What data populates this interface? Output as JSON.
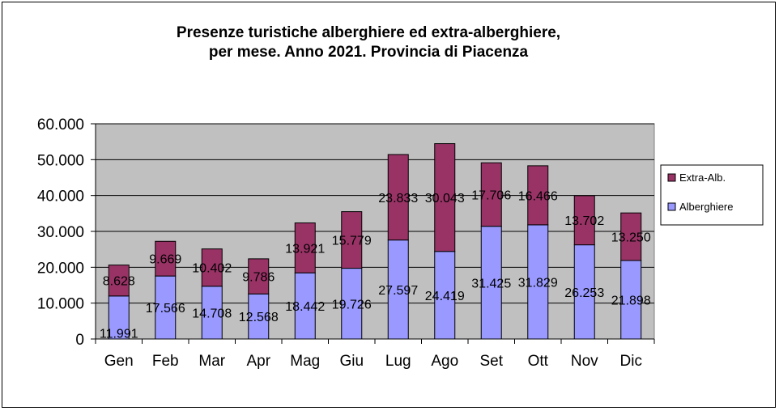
{
  "chart_data": {
    "type": "bar",
    "stacked": true,
    "title": "Presenze turistiche alberghiere ed extra-alberghiere,",
    "subtitle": "per mese. Anno 2021. Provincia di Piacenza",
    "categories": [
      "Gen",
      "Feb",
      "Mar",
      "Apr",
      "Mag",
      "Giu",
      "Lug",
      "Ago",
      "Set",
      "Ott",
      "Nov",
      "Dic"
    ],
    "series": [
      {
        "name": "Alberghiere",
        "color": "#9999ff",
        "values": [
          11991,
          17566,
          14708,
          12568,
          18442,
          19726,
          27597,
          24419,
          31425,
          31829,
          26253,
          21898
        ],
        "labels": [
          "11.991",
          "17.566",
          "14.708",
          "12.568",
          "18.442",
          "19.726",
          "27.597",
          "24.419",
          "31.425",
          "31.829",
          "26.253",
          "21.898"
        ]
      },
      {
        "name": "Extra-Alb.",
        "color": "#993366",
        "values": [
          8628,
          9669,
          10402,
          9786,
          13921,
          15779,
          23833,
          30043,
          17706,
          16466,
          13702,
          13250
        ],
        "labels": [
          "8.628",
          "9.669",
          "10.402",
          "9.786",
          "13.921",
          "15.779",
          "23.833",
          "30.043",
          "17.706",
          "16.466",
          "13.702",
          "13.250"
        ]
      }
    ],
    "ylim": [
      0,
      60000
    ],
    "yticks": [
      "0",
      "10.000",
      "20.000",
      "30.000",
      "40.000",
      "50.000",
      "60.000"
    ],
    "grid": true,
    "plot_background": "#c0c0c0",
    "legend": {
      "placement": "right",
      "entries": [
        "Extra-Alb.",
        "Alberghiere"
      ]
    }
  }
}
